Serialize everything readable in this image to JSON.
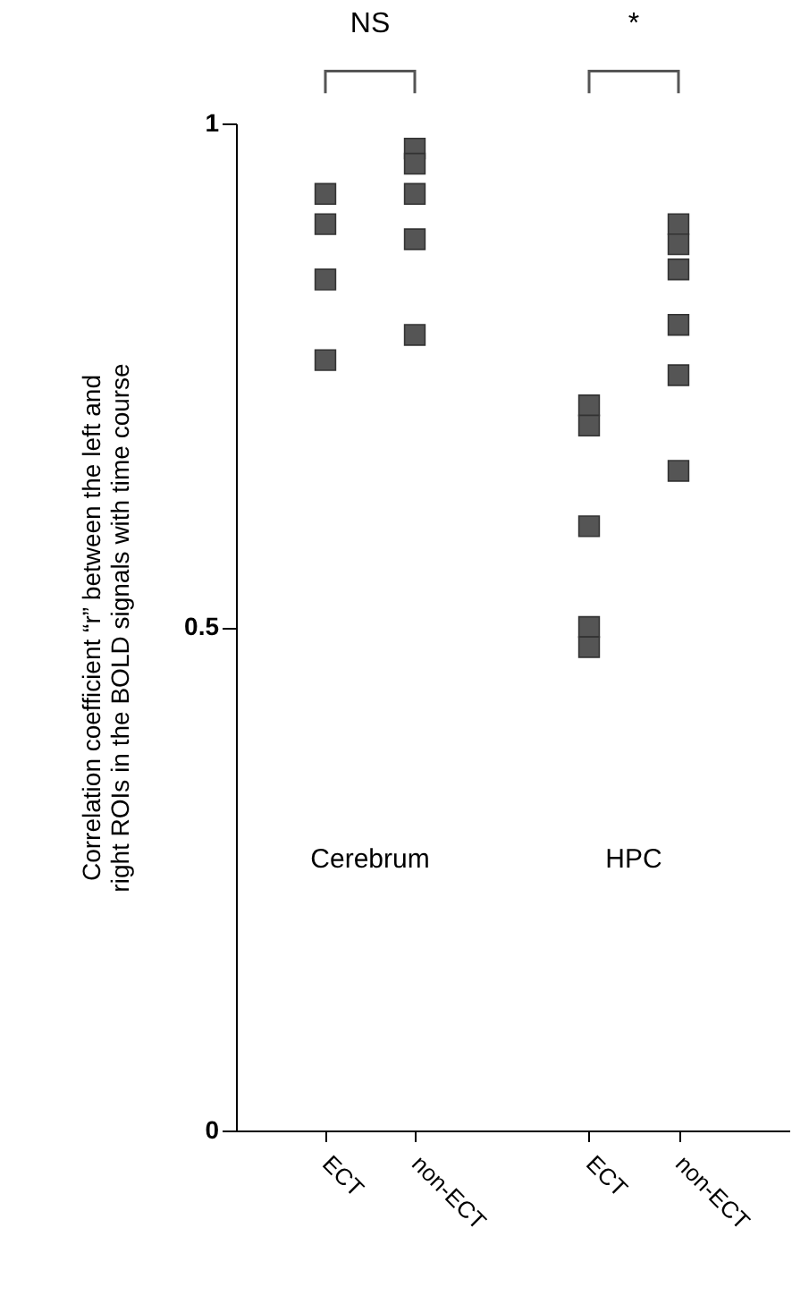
{
  "chart_data": [
    {
      "type": "scatter",
      "ylabel": "Correlation coefficient “r” between the left and right ROIs in the BOLD signals with time course",
      "categories": [
        "ECT",
        "non-ECT"
      ],
      "series": [
        {
          "color": "#555555",
          "x": [
            "ECT",
            "ECT",
            "ECT",
            "ECT",
            "non-ECT",
            "non-ECT",
            "non-ECT",
            "non-ECT",
            "non-ECT"
          ],
          "values": [
            0.93,
            0.9,
            0.845,
            0.765,
            0.975,
            0.96,
            0.93,
            0.885,
            0.79
          ]
        }
      ],
      "ylim": [
        0,
        1
      ],
      "yticks": [
        0,
        0.5,
        1
      ],
      "grid": false,
      "marker": "square",
      "annotations": [
        "NS",
        "Cerebrum"
      ]
    },
    {
      "type": "scatter",
      "categories": [
        "ECT",
        "non-ECT"
      ],
      "series": [
        {
          "color": "#555555",
          "x": [
            "ECT",
            "ECT",
            "ECT",
            "ECT",
            "ECT",
            "non-ECT",
            "non-ECT",
            "non-ECT",
            "non-ECT",
            "non-ECT",
            "non-ECT"
          ],
          "values": [
            0.72,
            0.7,
            0.6,
            0.5,
            0.48,
            0.9,
            0.88,
            0.855,
            0.8,
            0.75,
            0.655
          ]
        }
      ],
      "ylim": [
        0,
        1
      ],
      "yticks": [
        0,
        0.5,
        1
      ],
      "grid": false,
      "marker": "square",
      "tick_labels": "x",
      "annotations": [
        "*",
        "HPC"
      ]
    }
  ]
}
